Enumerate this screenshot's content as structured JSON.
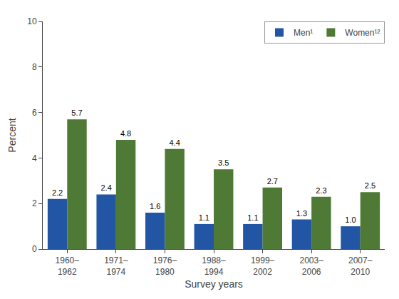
{
  "chart_data": {
    "type": "bar",
    "categories": [
      "1960–\n1962",
      "1971–\n1974",
      "1976–\n1980",
      "1988–\n1994",
      "1999–\n2002",
      "2003–\n2006",
      "2007–\n2010"
    ],
    "series": [
      {
        "name": "Men¹",
        "color": "#2255a4",
        "values": [
          2.2,
          2.4,
          1.6,
          1.1,
          1.1,
          1.3,
          1.0
        ],
        "value_labels": [
          "2.2",
          "2.4",
          "1.6",
          "1.1",
          "1.1",
          "1.3",
          "1.0"
        ]
      },
      {
        "name": "Women¹²",
        "color": "#4e7a35",
        "values": [
          5.7,
          4.8,
          4.4,
          3.5,
          2.7,
          2.3,
          2.5
        ],
        "value_labels": [
          "5.7",
          "4.8",
          "4.4",
          "3.5",
          "2.7",
          "2.3",
          "2.5"
        ]
      }
    ],
    "xlabel": "Survey years",
    "ylabel": "Percent",
    "ylim": [
      0,
      10
    ],
    "yticks": [
      0,
      2,
      4,
      6,
      8,
      10
    ],
    "grid": false,
    "legend": "upper right",
    "data_labels": true
  }
}
